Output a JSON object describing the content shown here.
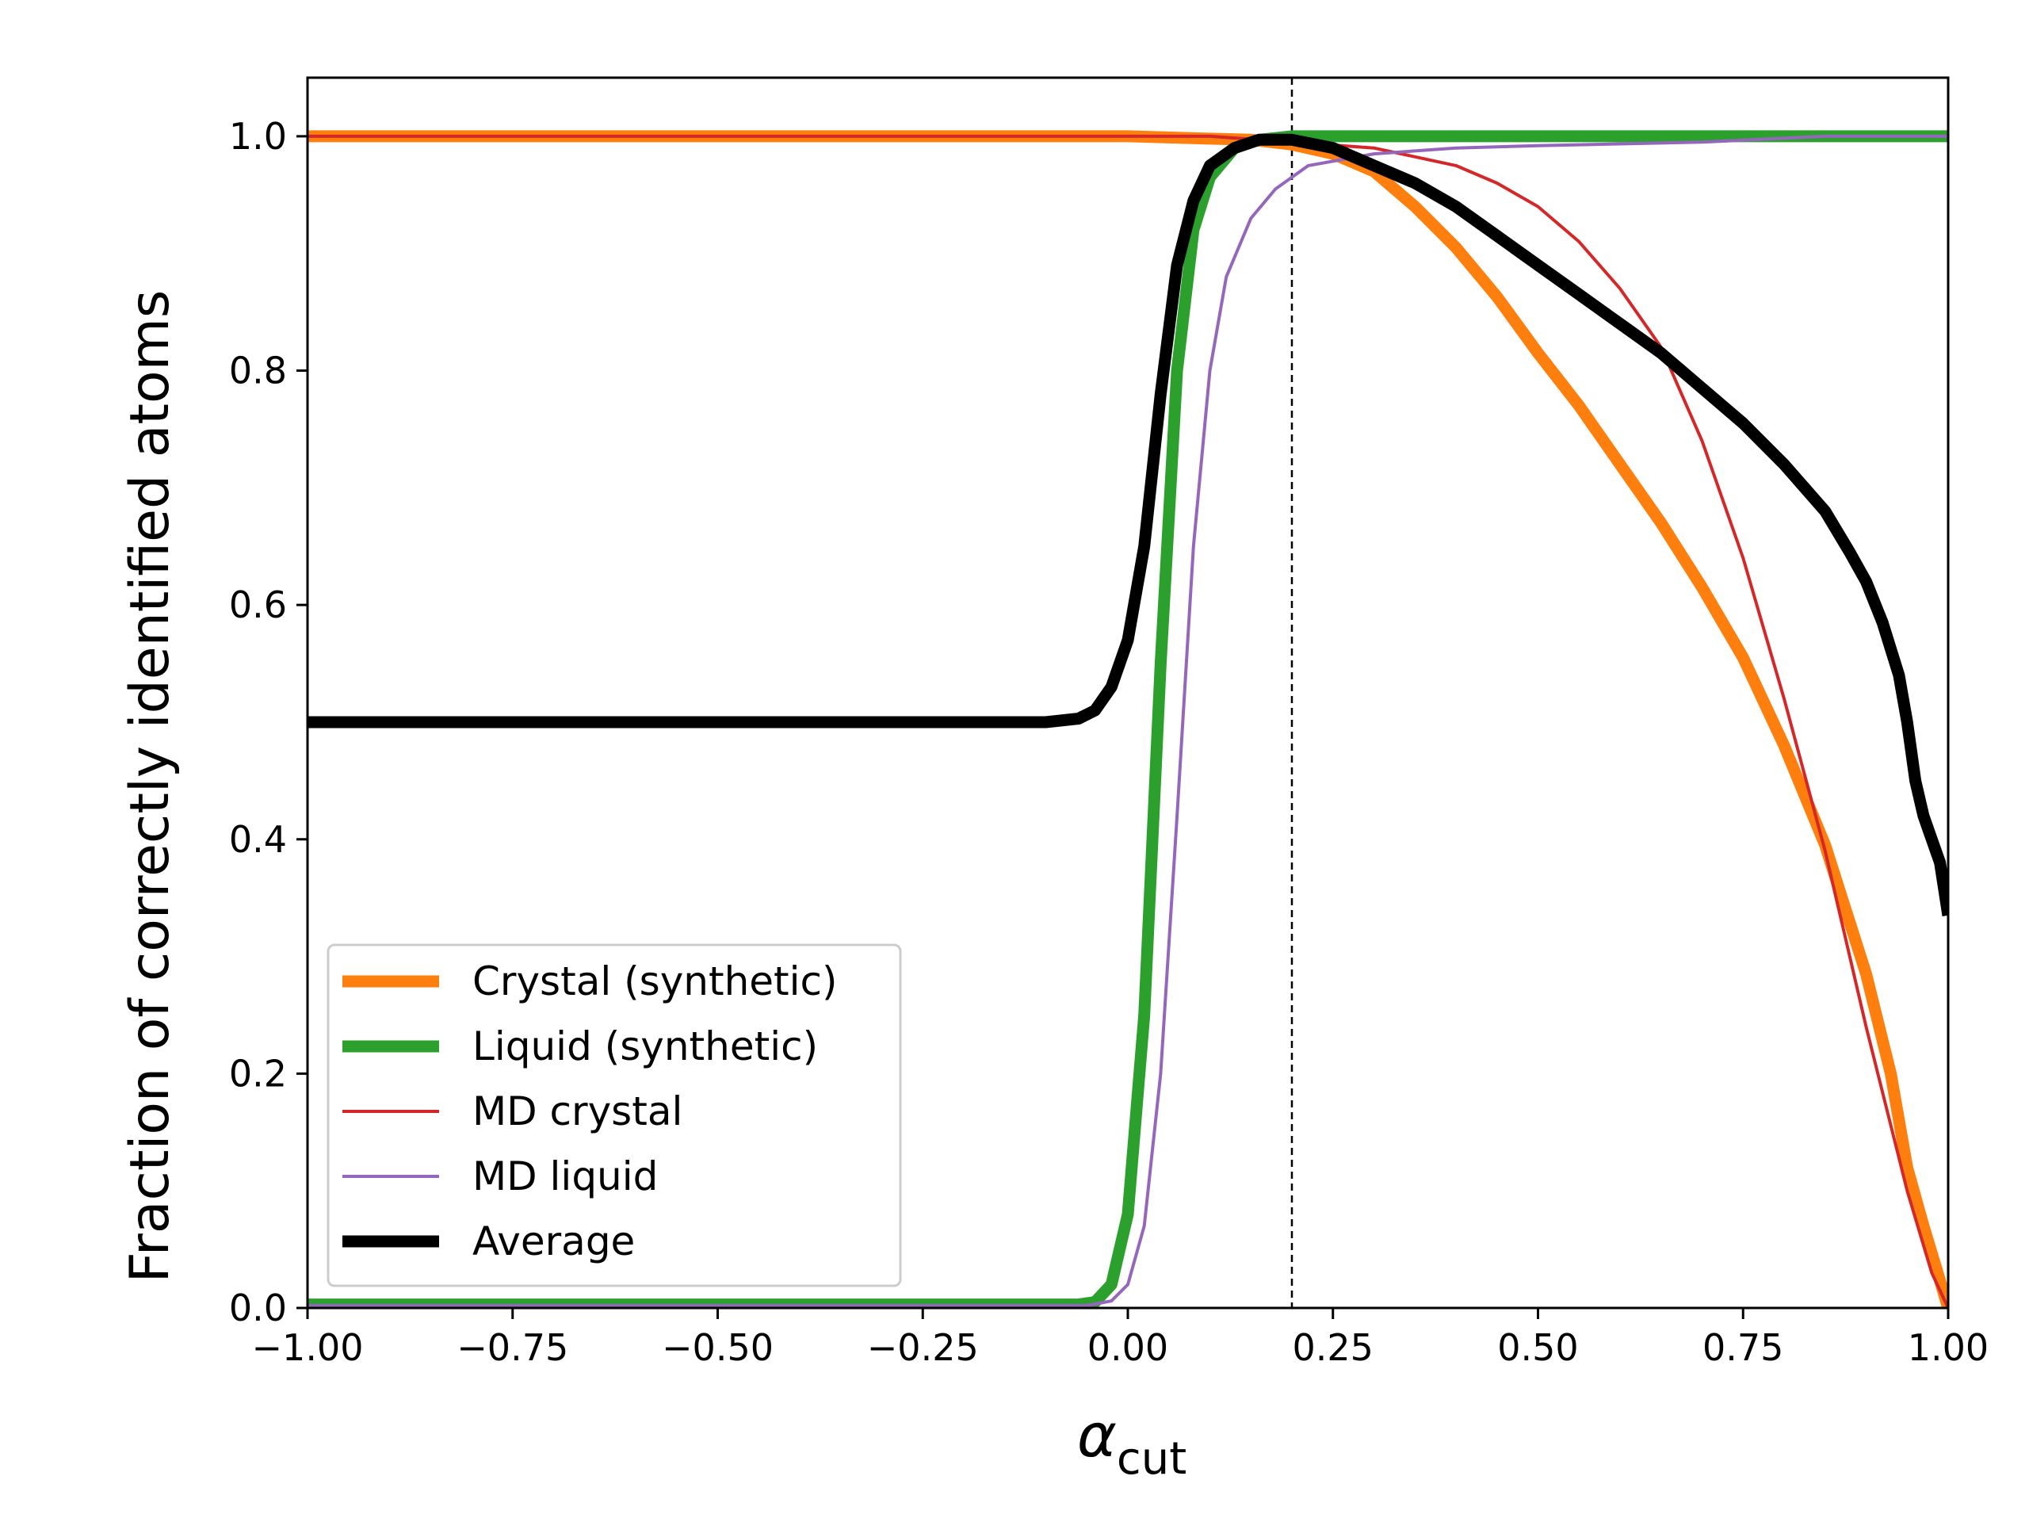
{
  "chart_data": {
    "type": "line",
    "xlabel_main": "α",
    "xlabel_sub": "cut",
    "ylabel": "Fraction of correctly identified atoms",
    "xlim": [
      -1.0,
      1.0
    ],
    "ylim": [
      0.0,
      1.05
    ],
    "xticks": [
      -1.0,
      -0.75,
      -0.5,
      -0.25,
      0.0,
      0.25,
      0.5,
      0.75,
      1.0
    ],
    "xtick_labels": [
      "−1.00",
      "−0.75",
      "−0.50",
      "−0.25",
      "0.00",
      "0.25",
      "0.50",
      "0.75",
      "1.00"
    ],
    "yticks": [
      0.0,
      0.2,
      0.4,
      0.6,
      0.8,
      1.0
    ],
    "ytick_labels": [
      "0.0",
      "0.2",
      "0.4",
      "0.6",
      "0.8",
      "1.0"
    ],
    "vline_x": 0.2,
    "grid": false,
    "legend_position": "lower-left",
    "series": [
      {
        "name": "Crystal (synthetic)",
        "color": "#ff7f0e",
        "width": "thick",
        "points": [
          [
            -1.0,
            1.0
          ],
          [
            0.0,
            1.0
          ],
          [
            0.1,
            0.998
          ],
          [
            0.15,
            0.997
          ],
          [
            0.2,
            0.993
          ],
          [
            0.25,
            0.985
          ],
          [
            0.3,
            0.97
          ],
          [
            0.35,
            0.94
          ],
          [
            0.4,
            0.905
          ],
          [
            0.45,
            0.863
          ],
          [
            0.5,
            0.815
          ],
          [
            0.55,
            0.77
          ],
          [
            0.6,
            0.72
          ],
          [
            0.65,
            0.67
          ],
          [
            0.7,
            0.615
          ],
          [
            0.75,
            0.555
          ],
          [
            0.8,
            0.48
          ],
          [
            0.85,
            0.395
          ],
          [
            0.9,
            0.285
          ],
          [
            0.93,
            0.2
          ],
          [
            0.95,
            0.12
          ],
          [
            0.97,
            0.07
          ],
          [
            0.985,
            0.035
          ],
          [
            1.0,
            0.0
          ]
        ]
      },
      {
        "name": "Liquid (synthetic)",
        "color": "#2ca02c",
        "width": "thick",
        "points": [
          [
            -1.0,
            0.003
          ],
          [
            -0.06,
            0.003
          ],
          [
            -0.04,
            0.005
          ],
          [
            -0.02,
            0.02
          ],
          [
            0.0,
            0.08
          ],
          [
            0.02,
            0.25
          ],
          [
            0.04,
            0.55
          ],
          [
            0.06,
            0.8
          ],
          [
            0.08,
            0.92
          ],
          [
            0.1,
            0.965
          ],
          [
            0.13,
            0.99
          ],
          [
            0.16,
            0.997
          ],
          [
            0.2,
            1.0
          ],
          [
            1.0,
            1.0
          ]
        ]
      },
      {
        "name": "MD crystal",
        "color": "#d62728",
        "width": "thin",
        "points": [
          [
            -1.0,
            1.0
          ],
          [
            0.1,
            1.0
          ],
          [
            0.2,
            0.995
          ],
          [
            0.3,
            0.99
          ],
          [
            0.4,
            0.975
          ],
          [
            0.45,
            0.96
          ],
          [
            0.5,
            0.94
          ],
          [
            0.55,
            0.91
          ],
          [
            0.6,
            0.87
          ],
          [
            0.65,
            0.82
          ],
          [
            0.7,
            0.74
          ],
          [
            0.75,
            0.64
          ],
          [
            0.8,
            0.52
          ],
          [
            0.85,
            0.39
          ],
          [
            0.9,
            0.24
          ],
          [
            0.95,
            0.1
          ],
          [
            0.98,
            0.03
          ],
          [
            1.0,
            0.0
          ]
        ]
      },
      {
        "name": "MD liquid",
        "color": "#9467bd",
        "width": "thin",
        "points": [
          [
            -1.0,
            0.002
          ],
          [
            -0.05,
            0.002
          ],
          [
            -0.02,
            0.006
          ],
          [
            0.0,
            0.02
          ],
          [
            0.02,
            0.07
          ],
          [
            0.04,
            0.2
          ],
          [
            0.06,
            0.42
          ],
          [
            0.08,
            0.65
          ],
          [
            0.1,
            0.8
          ],
          [
            0.12,
            0.88
          ],
          [
            0.15,
            0.93
          ],
          [
            0.18,
            0.955
          ],
          [
            0.22,
            0.975
          ],
          [
            0.3,
            0.985
          ],
          [
            0.4,
            0.99
          ],
          [
            0.5,
            0.992
          ],
          [
            0.7,
            0.995
          ],
          [
            0.85,
            1.0
          ],
          [
            1.0,
            1.0
          ]
        ]
      },
      {
        "name": "Average",
        "color": "#000000",
        "width": "thick",
        "points": [
          [
            -1.0,
            0.5
          ],
          [
            -0.1,
            0.5
          ],
          [
            -0.06,
            0.503
          ],
          [
            -0.04,
            0.51
          ],
          [
            -0.02,
            0.53
          ],
          [
            0.0,
            0.57
          ],
          [
            0.02,
            0.65
          ],
          [
            0.04,
            0.78
          ],
          [
            0.06,
            0.89
          ],
          [
            0.08,
            0.945
          ],
          [
            0.1,
            0.975
          ],
          [
            0.13,
            0.99
          ],
          [
            0.16,
            0.997
          ],
          [
            0.2,
            0.997
          ],
          [
            0.25,
            0.99
          ],
          [
            0.3,
            0.975
          ],
          [
            0.35,
            0.96
          ],
          [
            0.4,
            0.94
          ],
          [
            0.45,
            0.915
          ],
          [
            0.5,
            0.89
          ],
          [
            0.55,
            0.865
          ],
          [
            0.6,
            0.84
          ],
          [
            0.65,
            0.815
          ],
          [
            0.7,
            0.785
          ],
          [
            0.75,
            0.755
          ],
          [
            0.8,
            0.72
          ],
          [
            0.85,
            0.68
          ],
          [
            0.88,
            0.645
          ],
          [
            0.9,
            0.62
          ],
          [
            0.92,
            0.585
          ],
          [
            0.94,
            0.54
          ],
          [
            0.95,
            0.5
          ],
          [
            0.96,
            0.45
          ],
          [
            0.97,
            0.42
          ],
          [
            0.98,
            0.4
          ],
          [
            0.99,
            0.38
          ],
          [
            1.0,
            0.335
          ]
        ]
      }
    ]
  }
}
